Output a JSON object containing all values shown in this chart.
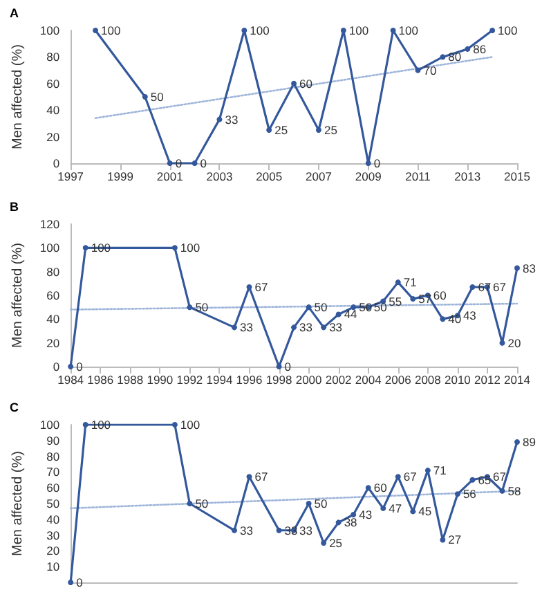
{
  "chart_data": [
    {
      "type": "line",
      "title": "A",
      "ylabel": "Men affected (%)",
      "xlim": [
        1997,
        2015
      ],
      "xticks": [
        1997,
        1999,
        2001,
        2003,
        2005,
        2007,
        2009,
        2011,
        2013,
        2015
      ],
      "ylim": [
        0,
        100
      ],
      "yticks": [
        0,
        20,
        40,
        60,
        80,
        100
      ],
      "grid": false,
      "marker": "circle",
      "series": [
        {
          "color": "#34589c",
          "x": [
            1998,
            2000,
            2001,
            2002,
            2003,
            2004,
            2005,
            2006,
            2007,
            2008,
            2009,
            2010,
            2011,
            2012,
            2013,
            2014
          ],
          "values": [
            100,
            50,
            0,
            0,
            33,
            100,
            25,
            60,
            25,
            100,
            0,
            100,
            70,
            80,
            86,
            100
          ],
          "value_labels": [
            "100",
            "50",
            "0",
            "0",
            "33",
            "100",
            "25",
            "60",
            "25",
            "100",
            "0",
            "100",
            "70",
            "80",
            "86",
            "100"
          ]
        },
        {
          "type": "line",
          "line_style": "dotted",
          "marker": "none",
          "color": "#9fb5da",
          "x": [
            1998,
            2014
          ],
          "values": [
            34,
            80
          ]
        }
      ]
    },
    {
      "type": "line",
      "title": "B",
      "ylabel": "Men affected (%)",
      "xlim": [
        1984,
        2014
      ],
      "xticks": [
        1984,
        1986,
        1988,
        1990,
        1992,
        1994,
        1996,
        1998,
        2000,
        2002,
        2004,
        2006,
        2008,
        2010,
        2012,
        2014
      ],
      "ylim": [
        0,
        120
      ],
      "yticks": [
        0,
        20,
        40,
        60,
        80,
        100,
        120
      ],
      "grid": false,
      "marker": "circle",
      "series": [
        {
          "color": "#34589c",
          "x": [
            1984,
            1985,
            1991,
            1992,
            1995,
            1996,
            1998,
            1999,
            2000,
            2001,
            2002,
            2003,
            2004,
            2005,
            2006,
            2007,
            2008,
            2009,
            2010,
            2011,
            2012,
            2013,
            2014
          ],
          "values": [
            0,
            100,
            100,
            50,
            33,
            67,
            0,
            33,
            50,
            33,
            44,
            50,
            50,
            55,
            71,
            57,
            60,
            40,
            43,
            67,
            67,
            20,
            83
          ],
          "value_labels": [
            "0",
            "100",
            "100",
            "50",
            "33",
            "67",
            "0",
            "33",
            "50",
            "33",
            "44",
            "50",
            "50",
            "55",
            "71",
            "57",
            "60",
            "40",
            "43",
            "67",
            "67",
            "20",
            "83"
          ]
        },
        {
          "type": "line",
          "line_style": "dotted",
          "marker": "none",
          "color": "#9fb5da",
          "x": [
            1984,
            2014
          ],
          "values": [
            48,
            53
          ]
        }
      ]
    },
    {
      "type": "line",
      "title": "C",
      "ylabel": "Men affected (%)",
      "xlim": [
        1984,
        2014
      ],
      "ylim": [
        0,
        100
      ],
      "yticks": [
        10,
        20,
        30,
        40,
        50,
        60,
        70,
        80,
        90,
        100
      ],
      "tick_labels": "y",
      "grid": false,
      "marker": "circle",
      "series": [
        {
          "color": "#34589c",
          "x": [
            1984,
            1985,
            1991,
            1992,
            1995,
            1996,
            1998,
            1999,
            2000,
            2001,
            2002,
            2003,
            2004,
            2005,
            2006,
            2007,
            2008,
            2009,
            2010,
            2011,
            2012,
            2013,
            2014
          ],
          "values": [
            0,
            100,
            100,
            50,
            33,
            67,
            33,
            33,
            50,
            25,
            38,
            43,
            60,
            47,
            67,
            45,
            71,
            27,
            56,
            65,
            67,
            58,
            89
          ],
          "value_labels": [
            "0",
            "100",
            "100",
            "50",
            "33",
            "67",
            "33",
            "33",
            "50",
            "25",
            "38",
            "43",
            "60",
            "47",
            "67",
            "45",
            "71",
            "27",
            "56",
            "65",
            "67",
            "58",
            "89"
          ]
        },
        {
          "type": "line",
          "line_style": "dotted",
          "marker": "none",
          "color": "#9fb5da",
          "x": [
            1984,
            2014
          ],
          "values": [
            47,
            58
          ]
        }
      ]
    }
  ]
}
